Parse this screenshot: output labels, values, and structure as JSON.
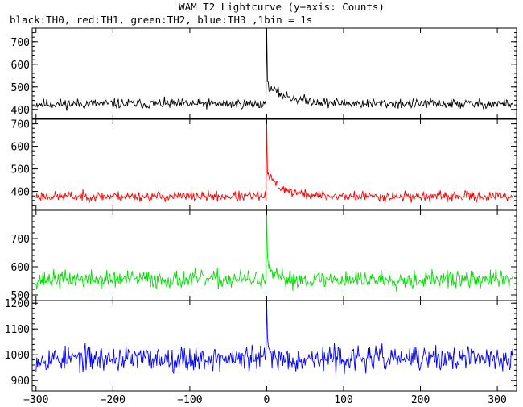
{
  "title": "WAM T2 Lightcurve (y−axis: Counts)",
  "subtitle": "black:TH0, red:TH1, green:TH2, blue:TH3 ,1bin = 1s",
  "chart_data": {
    "type": "line",
    "x_range": [
      -305,
      325
    ],
    "x_ticks": [
      -300,
      -200,
      -100,
      0,
      100,
      200,
      300
    ],
    "x_tick_labels": [
      "−300",
      "−200",
      "−100",
      "0",
      "100",
      "200",
      "300"
    ],
    "bin_seconds": 1,
    "panels": [
      {
        "name": "TH0",
        "color": "#000000",
        "ylim": [
          360,
          760
        ],
        "yticks": [
          400,
          500,
          600,
          700
        ],
        "baseline": 425,
        "noise": 14,
        "peak": 760,
        "post_peak": 505,
        "decay": 30,
        "seed": 11
      },
      {
        "name": "TH1",
        "color": "#ff0000",
        "ylim": [
          320,
          720
        ],
        "yticks": [
          400,
          500,
          600,
          700
        ],
        "baseline": 378,
        "noise": 14,
        "peak": 720,
        "post_peak": 480,
        "decay": 20,
        "seed": 23
      },
      {
        "name": "TH2",
        "color": "#00e000",
        "ylim": [
          480,
          800
        ],
        "yticks": [
          500,
          600,
          700
        ],
        "baseline": 555,
        "noise": 20,
        "peak": 800,
        "post_peak": 620,
        "decay": 6,
        "seed": 37
      },
      {
        "name": "TH3",
        "color": "#0000ff",
        "ylim": [
          860,
          1210
        ],
        "yticks": [
          900,
          1000,
          1100,
          1200
        ],
        "baseline": 985,
        "noise": 30,
        "peak": 1210,
        "post_peak": 1060,
        "decay": 4,
        "seed": 53
      }
    ]
  }
}
